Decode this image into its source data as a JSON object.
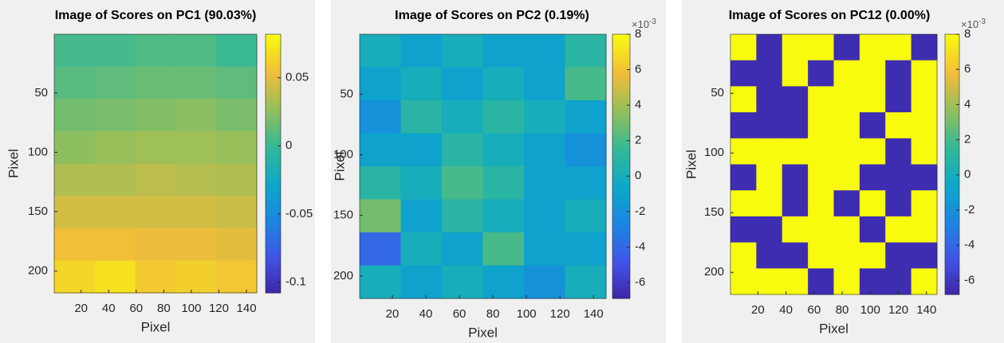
{
  "chart_data": [
    {
      "type": "heatmap",
      "title": "Image of Scores on PC1 (90.03%)",
      "x_label": "Pixel",
      "y_label": "Pixel",
      "xlim": [
        0.5,
        147.5
      ],
      "ylim": [
        0.5,
        218.5
      ],
      "xticks": [
        20,
        40,
        60,
        80,
        100,
        120,
        140
      ],
      "yticks": [
        50,
        100,
        150,
        200
      ],
      "y_reversed": true,
      "colormap": "parula",
      "clim": [
        -0.108,
        0.082
      ],
      "colorbar_ticks": [
        -0.1,
        -0.05,
        0,
        0.05
      ],
      "z": [
        [
          0.005,
          0.005,
          0.008,
          0.008,
          0.002
        ],
        [
          0.01,
          0.012,
          0.015,
          0.015,
          0.012
        ],
        [
          0.018,
          0.02,
          0.022,
          0.024,
          0.02
        ],
        [
          0.025,
          0.028,
          0.03,
          0.03,
          0.028
        ],
        [
          0.035,
          0.035,
          0.038,
          0.036,
          0.035
        ],
        [
          0.045,
          0.045,
          0.045,
          0.045,
          0.042
        ],
        [
          0.055,
          0.055,
          0.052,
          0.052,
          0.05
        ],
        [
          0.065,
          0.07,
          0.06,
          0.062,
          0.058
        ]
      ]
    },
    {
      "type": "heatmap",
      "title": "Image of Scores on PC2 (0.19%)",
      "x_label": "Pixel",
      "y_label": "Pixel",
      "xlim": [
        0.5,
        147.5
      ],
      "ylim": [
        0.5,
        218.5
      ],
      "xticks": [
        20,
        40,
        60,
        80,
        100,
        120,
        140
      ],
      "yticks": [
        50,
        100,
        150,
        200
      ],
      "y_reversed": true,
      "colormap": "parula",
      "clim": [
        -0.0069,
        0.008
      ],
      "colorbar_ticks": [
        {
          "value": -0.006,
          "label": "-6"
        },
        {
          "value": -0.004,
          "label": "-4"
        },
        {
          "value": -0.002,
          "label": "-2"
        },
        0,
        {
          "value": 0.002,
          "label": "2"
        },
        {
          "value": 0.004,
          "label": "4"
        },
        {
          "value": 0.006,
          "label": "6"
        },
        {
          "value": 0.008,
          "label": "8"
        }
      ],
      "colorbar_multiplier": "×10",
      "colorbar_exponent": "-3",
      "z": [
        [
          0,
          -0.001,
          0,
          -0.001,
          -0.001,
          0.001
        ],
        [
          -0.001,
          0,
          -0.001,
          0,
          -0.001,
          0.002
        ],
        [
          -0.002,
          0.001,
          0,
          0.001,
          0,
          -0.001
        ],
        [
          -0.001,
          -0.001,
          0.001,
          0,
          -0.001,
          -0.002
        ],
        [
          0.001,
          0,
          0.002,
          0.001,
          -0.001,
          -0.001
        ],
        [
          0.003,
          -0.001,
          0.001,
          0,
          -0.001,
          0
        ],
        [
          -0.004,
          0,
          -0.001,
          0.002,
          -0.001,
          -0.001
        ],
        [
          0,
          -0.001,
          0,
          -0.001,
          -0.002,
          0
        ]
      ]
    },
    {
      "type": "heatmap",
      "title": "Image of Scores on PC12 (0.00%)",
      "x_label": "Pixel",
      "y_label": "Pixel",
      "xlim": [
        0.5,
        147.5
      ],
      "ylim": [
        0.5,
        218.5
      ],
      "xticks": [
        20,
        40,
        60,
        80,
        100,
        120,
        140
      ],
      "yticks": [
        50,
        100,
        150,
        200
      ],
      "y_reversed": true,
      "colormap": "parula",
      "clim": [
        -0.0068,
        0.008
      ],
      "colorbar_ticks": [
        {
          "value": -0.006,
          "label": "-6"
        },
        {
          "value": -0.004,
          "label": "-4"
        },
        {
          "value": -0.002,
          "label": "-2"
        },
        0,
        {
          "value": 0.002,
          "label": "2"
        },
        {
          "value": 0.004,
          "label": "4"
        },
        {
          "value": 0.006,
          "label": "6"
        },
        {
          "value": 0.008,
          "label": "8"
        }
      ],
      "colorbar_multiplier": "×10",
      "colorbar_exponent": "-3",
      "z": [
        [
          0.008,
          -0.0065,
          0.008,
          0.008,
          -0.0065,
          0.008,
          0.008,
          -0.0065
        ],
        [
          -0.0065,
          -0.0065,
          0.008,
          -0.0065,
          0.008,
          0.008,
          -0.0065,
          0.008
        ],
        [
          0.008,
          -0.0065,
          -0.0065,
          0.008,
          0.008,
          0.008,
          -0.0065,
          0.008
        ],
        [
          -0.0065,
          -0.0065,
          -0.0065,
          0.008,
          0.008,
          -0.0065,
          0.008,
          0.008
        ],
        [
          0.008,
          0.008,
          0.008,
          0.008,
          0.008,
          0.008,
          -0.0065,
          0.008
        ],
        [
          -0.0065,
          0.008,
          -0.0065,
          0.008,
          0.008,
          -0.0065,
          -0.0065,
          -0.0065
        ],
        [
          0.008,
          0.008,
          -0.0065,
          0.008,
          -0.0065,
          0.008,
          -0.0065,
          0.008
        ],
        [
          -0.0065,
          -0.0065,
          0.008,
          0.008,
          0.008,
          -0.0065,
          0.008,
          0.008
        ],
        [
          0.008,
          -0.0065,
          -0.0065,
          0.008,
          0.008,
          0.008,
          -0.0065,
          -0.0065
        ],
        [
          0.008,
          0.008,
          0.008,
          -0.0065,
          0.008,
          -0.0065,
          -0.0065,
          0.008
        ]
      ]
    }
  ]
}
